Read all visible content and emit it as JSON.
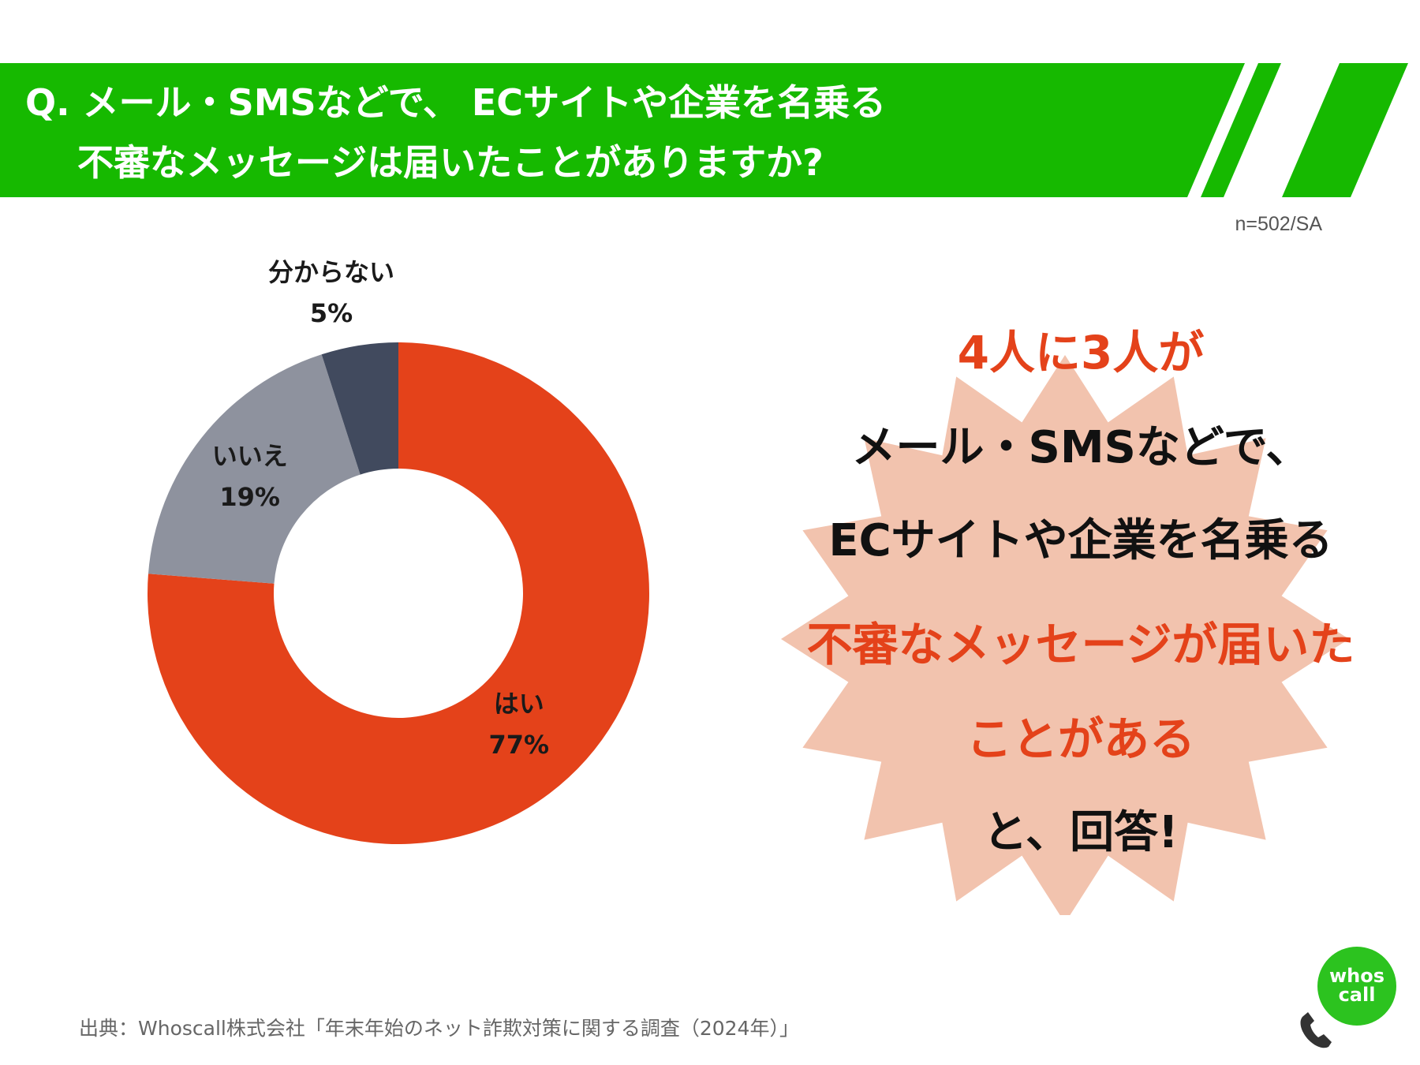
{
  "header": {
    "question_line1": "Q. メール・SMSなどで、 ECサイトや企業を名乗る",
    "question_line2": "不審なメッセージは届いたことがありますか?",
    "banner_color": "#16b900"
  },
  "sample_note": "n=502/SA",
  "chart_data": {
    "type": "pie",
    "donut": true,
    "title": "",
    "slices": [
      {
        "label": "はい",
        "value": 77,
        "value_label": "77%",
        "color": "#e4421a"
      },
      {
        "label": "いいえ",
        "value": 19,
        "value_label": "19%",
        "color": "#8e929e"
      },
      {
        "label": "分からない",
        "value": 5,
        "value_label": "5%",
        "color": "#414a5e"
      }
    ]
  },
  "callout": {
    "line1": "4人に3人が",
    "line2": "メール・SMSなどで、",
    "line3": "ECサイトや企業を名乗る",
    "line4": "不審なメッセージが届いた",
    "line5": "ことがある",
    "line6": "と、回答!",
    "burst_color": "#f2c3ae",
    "accent_color": "#e4421a"
  },
  "source": "出典：Whoscall株式会社「年末年始のネット詐欺対策に関する調査（2024年）」",
  "logo": {
    "line1": "whos",
    "line2": "call",
    "icon": "phone-icon"
  }
}
